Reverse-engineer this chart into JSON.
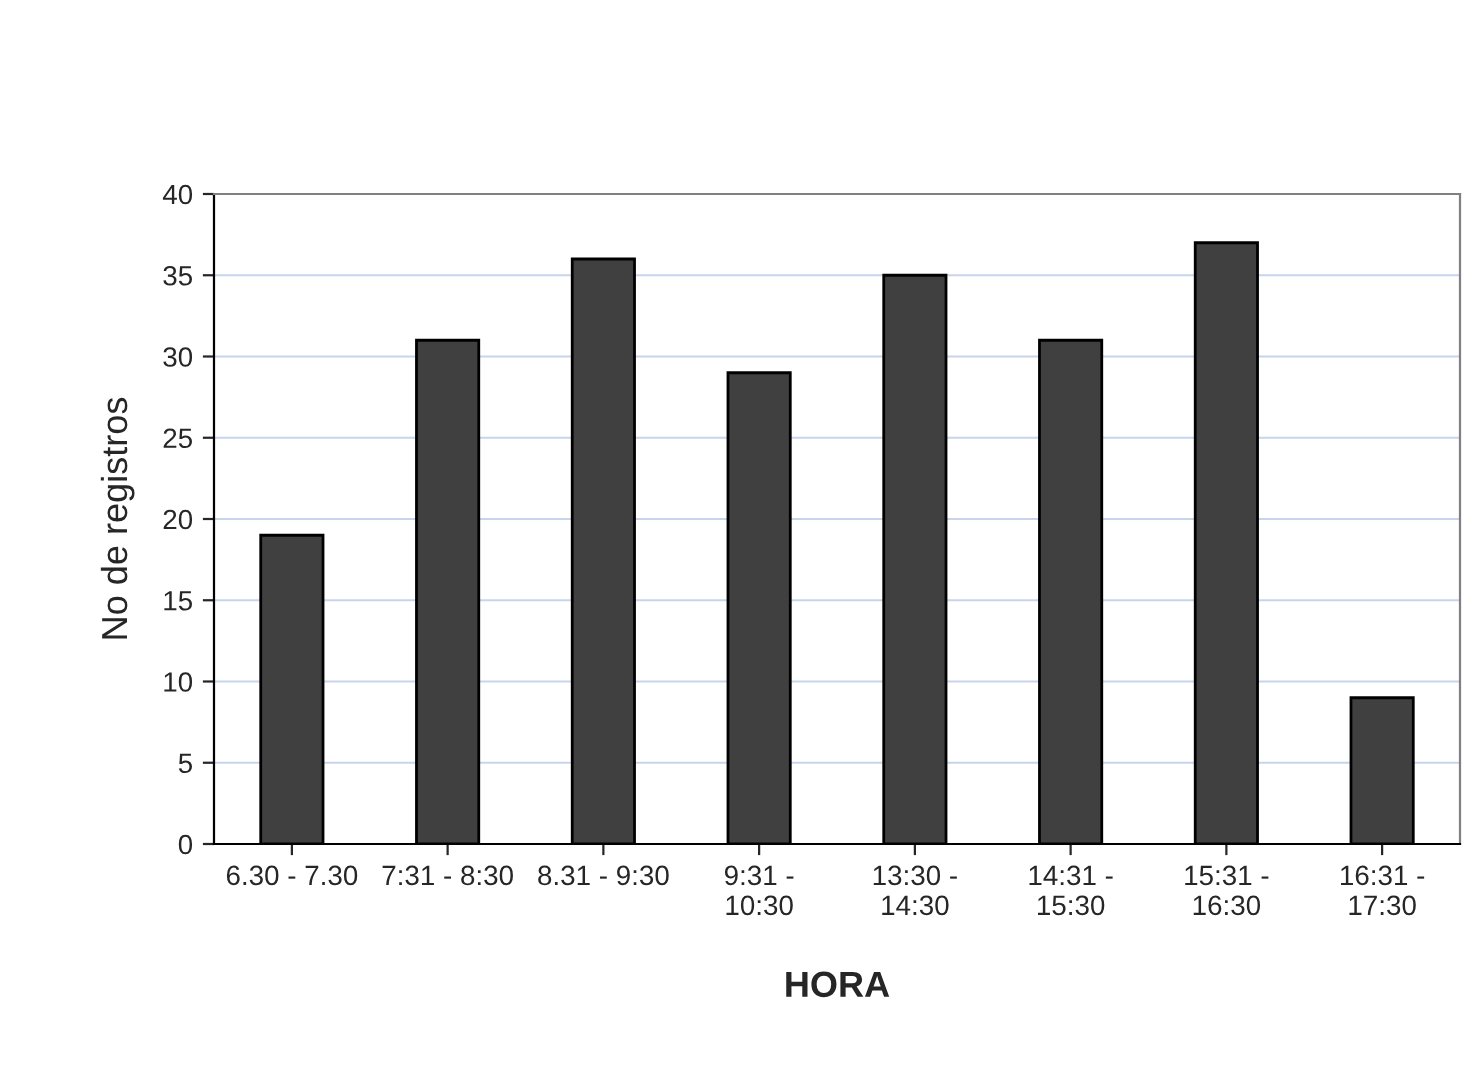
{
  "chart_data": {
    "type": "bar",
    "xlabel": "HORA",
    "ylabel": "No de registros",
    "categories": [
      "6.30 - 7.30",
      "7:31 - 8:30",
      "8.31 - 9:30",
      "9:31 -\n10:30",
      "13:30 -\n14:30",
      "14:31 -\n15:30",
      "15:31 -\n16:30",
      "16:31 -\n17:30"
    ],
    "values": [
      19,
      31,
      36,
      29,
      35,
      31,
      37,
      9
    ],
    "color": "#404040",
    "ylim": [
      0,
      40
    ],
    "yticks": [
      0,
      5,
      10,
      15,
      20,
      25,
      30,
      35,
      40
    ],
    "grid": "y"
  }
}
